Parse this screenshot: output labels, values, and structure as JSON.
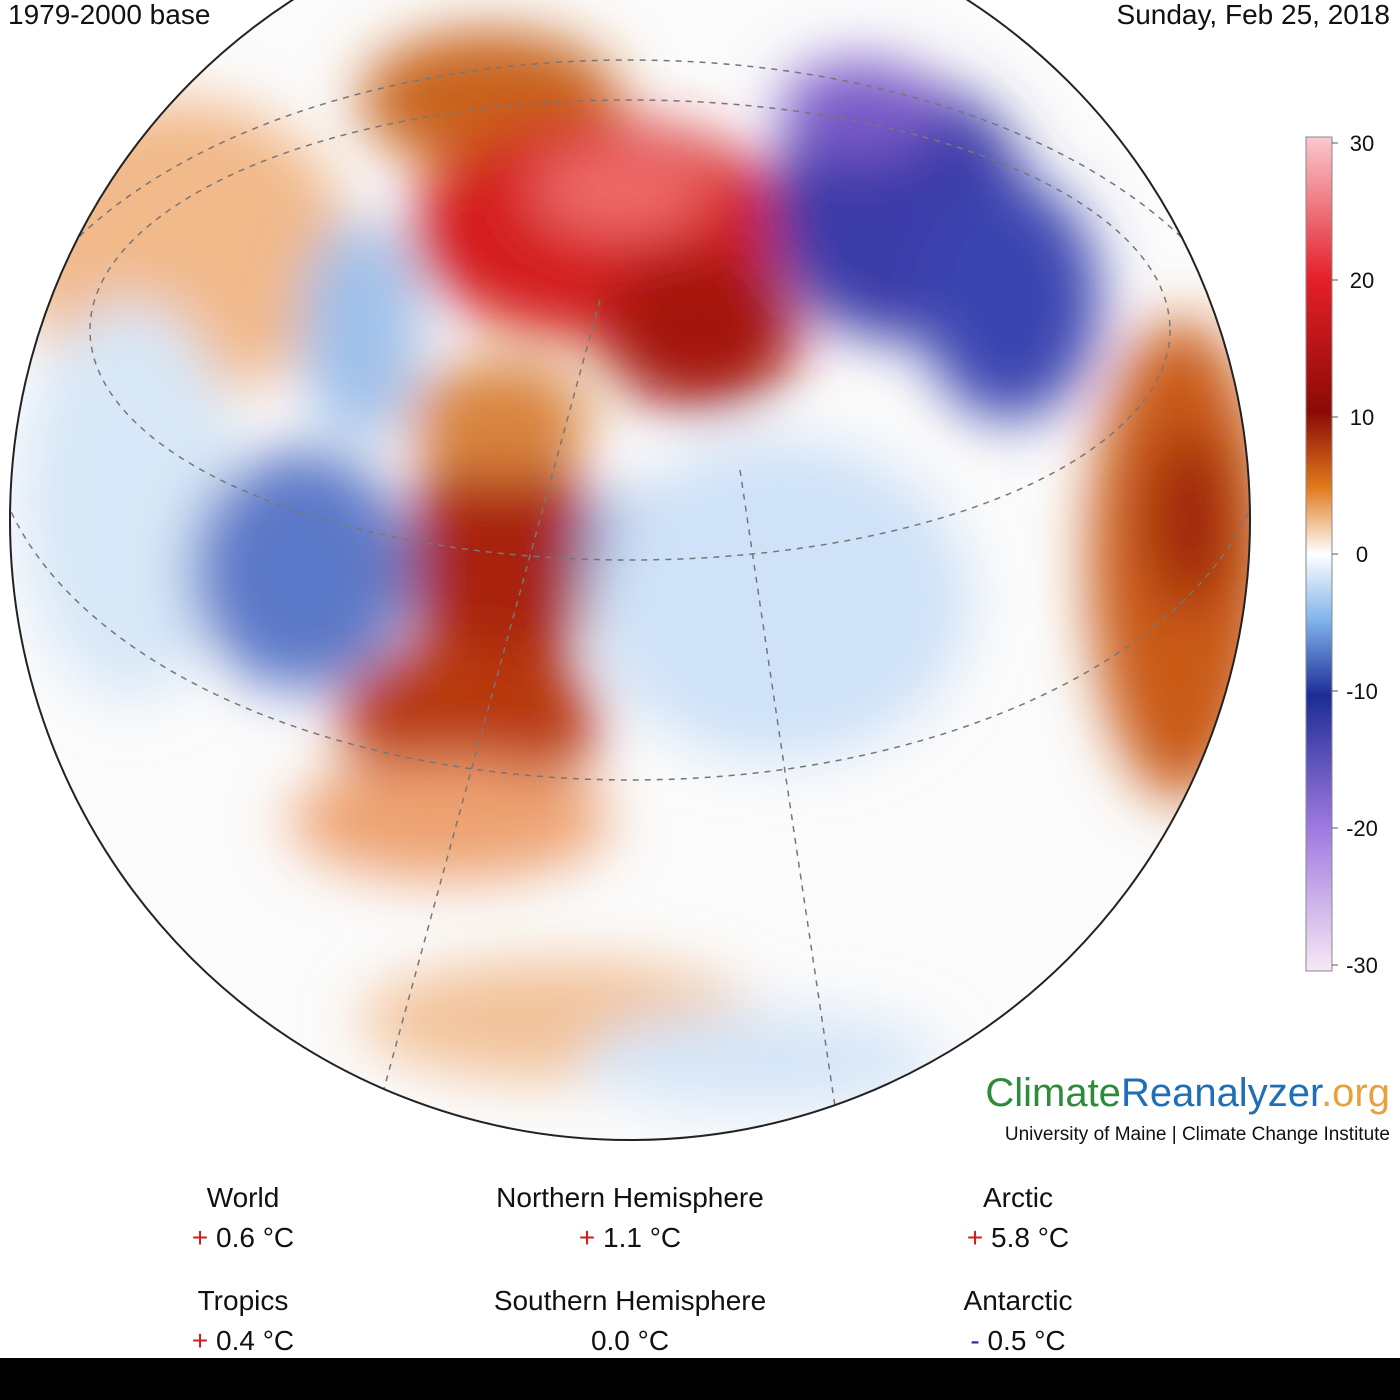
{
  "header": {
    "left": "1979-2000 base",
    "right": "Sunday, Feb 25, 2018"
  },
  "colorbar": {
    "range": [
      -30,
      30
    ],
    "ticks": [
      30,
      20,
      10,
      0,
      -10,
      -20,
      -30
    ]
  },
  "logo": {
    "parts": [
      "Climate",
      "Reanalyzer",
      ".org"
    ],
    "subtitle": "University of Maine | Climate Change Institute"
  },
  "stats": [
    {
      "name": "World",
      "sign": "+",
      "value": "0.6 °C"
    },
    {
      "name": "Northern Hemisphere",
      "sign": "+",
      "value": "1.1 °C"
    },
    {
      "name": "Arctic",
      "sign": "+",
      "value": "5.8 °C"
    },
    {
      "name": "Tropics",
      "sign": "+",
      "value": "0.4 °C"
    },
    {
      "name": "Southern Hemisphere",
      "value": "0.0 °C"
    },
    {
      "name": "Antarctic",
      "sign": "-",
      "value": "0.5 °C"
    }
  ]
}
